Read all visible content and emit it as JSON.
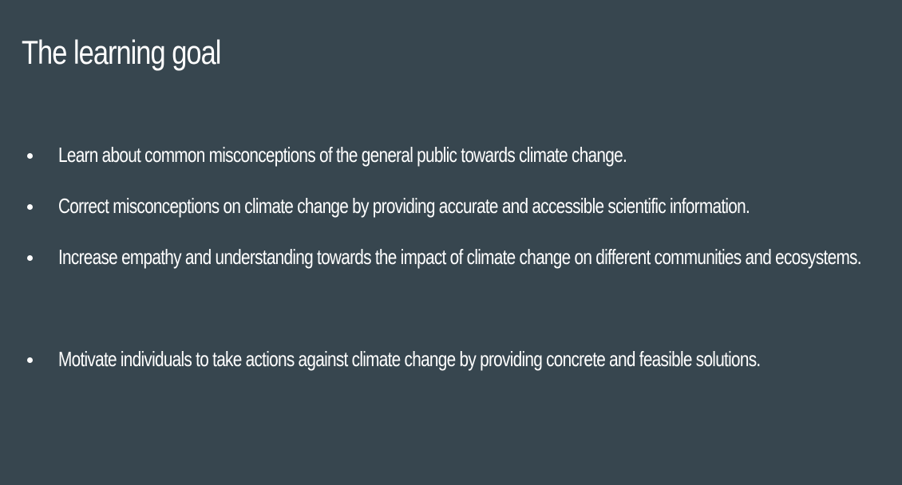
{
  "slide": {
    "title": "The learning goal",
    "bullets": [
      "Learn about common misconceptions of the general public towards climate change.",
      "Correct misconceptions on climate change by providing accurate and accessible scientific information.",
      "Increase empathy and understanding towards the impact of climate change on different communities and ecosystems.",
      "Motivate individuals to take actions against climate change by providing concrete and feasible solutions."
    ],
    "colors": {
      "background": "#37464f",
      "text": "#ffffff"
    }
  }
}
